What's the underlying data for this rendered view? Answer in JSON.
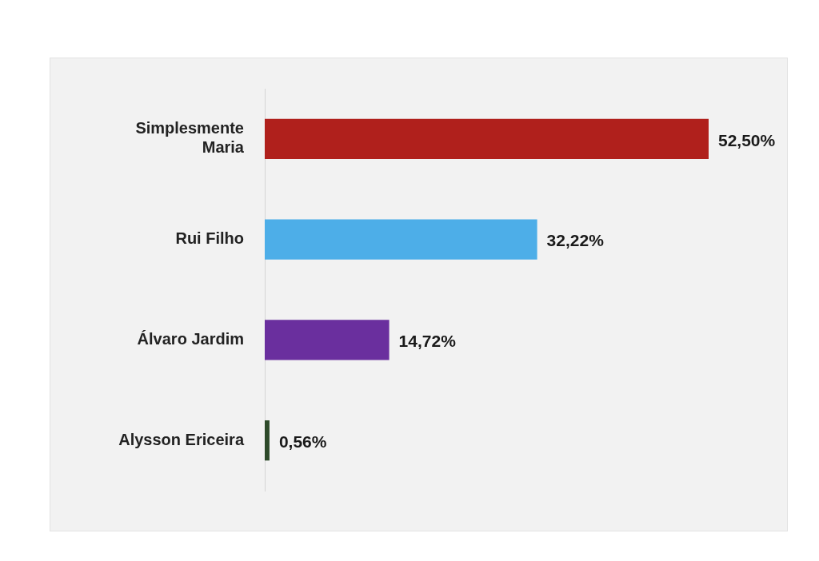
{
  "chart_data": {
    "type": "bar",
    "orientation": "horizontal",
    "categories": [
      "Simplesmente Maria",
      "Rui Filho",
      "Álvaro Jardim",
      "Alysson Ericeira"
    ],
    "values": [
      52.5,
      32.22,
      14.72,
      0.56
    ],
    "colors": [
      "#b0201c",
      "#4daee8",
      "#6a2f9e",
      "#2e4a2a"
    ],
    "value_labels": [
      "52,50%",
      "32,22%",
      "14,72%",
      "0,56%"
    ],
    "tick_labels": "y",
    "legend": false
  }
}
